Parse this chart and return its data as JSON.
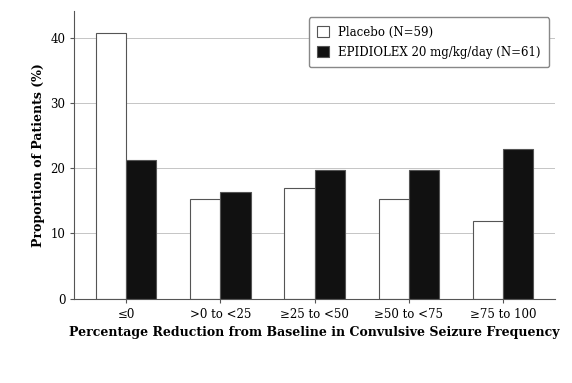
{
  "categories": [
    "≤0",
    ">0 to <25",
    "≥25 to <50",
    "≥50 to <75",
    "≥75 to 100"
  ],
  "placebo_values": [
    40.7,
    15.3,
    17.0,
    15.3,
    11.9
  ],
  "epidiolex_values": [
    21.3,
    16.4,
    19.7,
    19.7,
    23.0
  ],
  "placebo_label": "Placebo (N=59)",
  "epidiolex_label": "EPIDIOLEX 20 mg/kg/day (N=61)",
  "placebo_color": "#ffffff",
  "epidiolex_color": "#111111",
  "bar_edge_color": "#555555",
  "xlabel": "Percentage Reduction from Baseline in Convulsive Seizure Frequency",
  "ylabel": "Proportion of Patients (%)",
  "ylim": [
    0,
    44
  ],
  "yticks": [
    0,
    10,
    20,
    30,
    40
  ],
  "background_color": "#ffffff",
  "grid_color": "#bbbbbb",
  "bar_width": 0.32,
  "legend_fontsize": 8.5,
  "axis_fontsize": 9,
  "tick_fontsize": 8.5
}
